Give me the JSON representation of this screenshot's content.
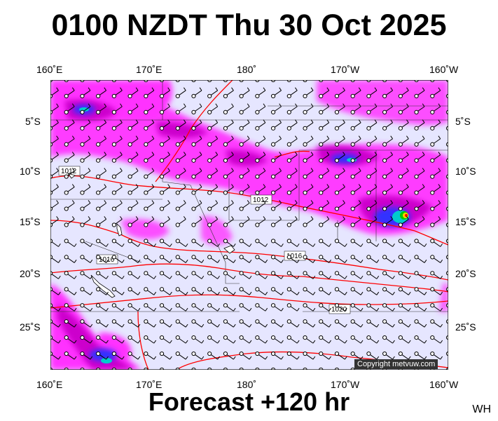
{
  "title": "0100 NZDT Thu 30 Oct 2025",
  "footer": "Forecast +120 hr",
  "initials": "WH",
  "copyright": "Copyright metvuw.com",
  "lon_labels": [
    "160˚E",
    "170˚E",
    "180˚",
    "170˚W",
    "160˚W"
  ],
  "lat_labels_left": [
    "5˚S",
    "10˚S",
    "15˚S",
    "20˚S",
    "25˚S"
  ],
  "lat_labels_right": [
    "5˚S",
    "10˚S",
    "15˚S",
    "20˚S",
    "25˚S"
  ],
  "isobar_labels": [
    "1012",
    "1012",
    "1016",
    "1016",
    "1020"
  ],
  "colors": {
    "ocean": "#e6e6ff",
    "rain_light": "#ff66ff",
    "rain_medium": "#e600e6",
    "rain_heavy": "#b300b3",
    "rain_blue": "#3333ff",
    "rain_cyan": "#00cccc",
    "rain_green": "#00cc00",
    "rain_yellow": "#ffcc00",
    "rain_red": "#ff0000",
    "isobar": "#ff0000"
  }
}
